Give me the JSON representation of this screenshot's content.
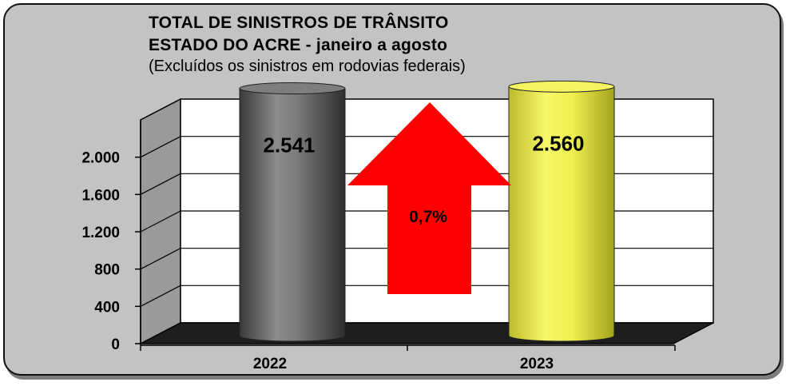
{
  "chart_data": {
    "type": "bar",
    "title": "TOTAL DE SINISTROS DE TRÂNSITO",
    "subtitle": "ESTADO DO ACRE - janeiro a agosto",
    "note": "(Excluídos os sinistros em rodovias federais)",
    "categories": [
      "2022",
      "2023"
    ],
    "values": [
      2541,
      2560
    ],
    "value_labels": [
      "2.541",
      "2.560"
    ],
    "y_ticks": [
      0,
      400,
      800,
      1200,
      1600,
      2000
    ],
    "y_tick_labels": [
      "0",
      "400",
      "800",
      "1.200",
      "1.600",
      "2.000"
    ],
    "ylim": [
      0,
      2400
    ],
    "grid": true,
    "annotation": "0,7%",
    "colors": {
      "bar_2022": "#7a7a7a",
      "bar_2023": "#f2f25a",
      "arrow": "#ff0000",
      "floor": "#1e1e1e",
      "plot_background": "#ffffff",
      "panel_background": "#c3c3c3"
    }
  }
}
